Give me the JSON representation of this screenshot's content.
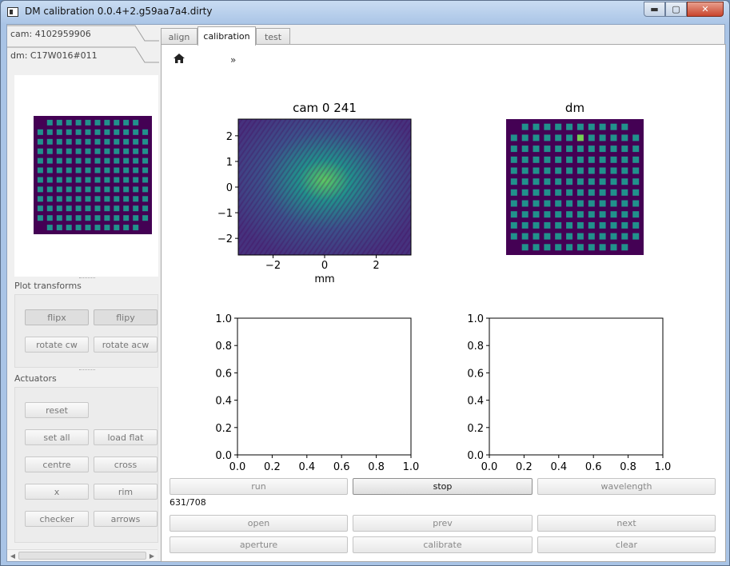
{
  "window": {
    "title": "DM calibration 0.0.4+2.g59aa7a4.dirty",
    "min_glyph": "▬",
    "max_glyph": "▢",
    "close_glyph": "✕"
  },
  "sidebar": {
    "cam_tab": "cam: 4102959906",
    "dm_tab": "dm: C17W016#011",
    "plot_transforms": {
      "label": "Plot transforms",
      "buttons": [
        "flipx",
        "flipy",
        "rotate cw",
        "rotate acw"
      ]
    },
    "actuators": {
      "label": "Actuators",
      "buttons": [
        "reset",
        "set all",
        "load flat",
        "centre",
        "cross",
        "x",
        "rim",
        "checker",
        "arrows"
      ]
    },
    "scroll_left": "◀",
    "scroll_right": "▶"
  },
  "tabs": [
    {
      "label": "align",
      "selected": false
    },
    {
      "label": "calibration",
      "selected": true
    },
    {
      "label": "test",
      "selected": false
    }
  ],
  "toolbar": {
    "home_icon": "home-icon",
    "more_glyph": "»"
  },
  "plots": {
    "cam": {
      "title": "cam   0  241",
      "xlabel": "mm",
      "xticks": [
        "−2",
        "0",
        "2"
      ],
      "yticks": [
        "2",
        "1",
        "0",
        "−1",
        "−2"
      ]
    },
    "dm": {
      "title": "dm"
    },
    "empty_ticks": [
      "0.0",
      "0.2",
      "0.4",
      "0.6",
      "0.8",
      "1.0"
    ]
  },
  "controls": {
    "row1": [
      "run",
      "stop",
      "wavelength"
    ],
    "progress": "631/708",
    "row2": [
      "open",
      "prev",
      "next"
    ],
    "row3": [
      "aperture",
      "calibrate",
      "clear"
    ]
  },
  "colors": {
    "viridis_dark": "#440154",
    "viridis_actuator": "#21918c",
    "viridis_bright": "#73d055"
  }
}
